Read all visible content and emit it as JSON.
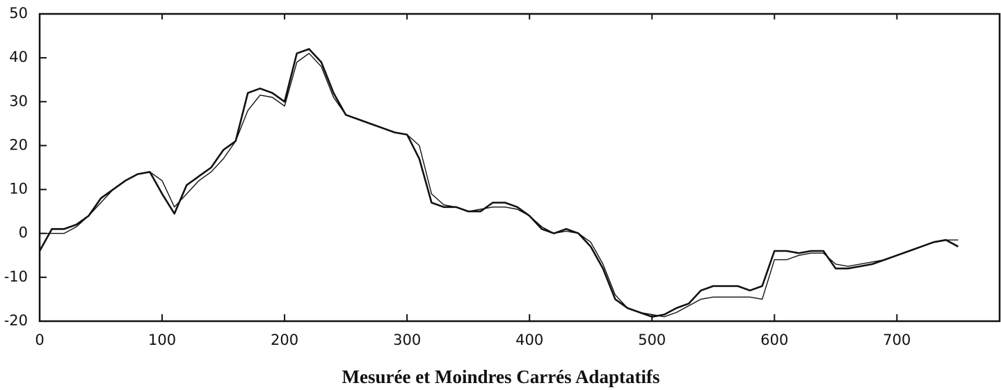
{
  "chart_data": {
    "type": "line",
    "title": "Mesurée et Moindres Carrés Adaptatifs",
    "x": [
      0,
      10,
      20,
      30,
      40,
      50,
      60,
      70,
      80,
      90,
      100,
      110,
      120,
      130,
      140,
      150,
      160,
      170,
      180,
      190,
      200,
      210,
      220,
      230,
      240,
      250,
      260,
      270,
      280,
      290,
      300,
      310,
      320,
      330,
      340,
      350,
      360,
      370,
      380,
      390,
      400,
      410,
      420,
      430,
      440,
      450,
      460,
      470,
      480,
      490,
      500,
      510,
      520,
      530,
      540,
      550,
      560,
      570,
      580,
      590,
      600,
      610,
      620,
      630,
      640,
      650,
      660,
      670,
      680,
      690,
      700,
      710,
      720,
      730,
      740,
      750
    ],
    "series": [
      {
        "color": "#111111",
        "values": [
          -4,
          1,
          1,
          2,
          4,
          8,
          10,
          12,
          13.5,
          14,
          9,
          4.5,
          11,
          13,
          15,
          19,
          21,
          32,
          33,
          32,
          30,
          41,
          42,
          39,
          32,
          27,
          26,
          25,
          24,
          23,
          22.5,
          17,
          7,
          6,
          6,
          5,
          5,
          7,
          7,
          6,
          4,
          1,
          0,
          1,
          0,
          -3,
          -8,
          -15,
          -17,
          -18,
          -19,
          -18.5,
          -17,
          -16,
          -13,
          -12,
          -12,
          -12,
          -13,
          -12,
          -4,
          -4,
          -4.5,
          -4,
          -4,
          -8,
          -8,
          -7.5,
          -7,
          -6,
          -5,
          -4,
          -3,
          -2,
          -1.5,
          -3
        ]
      },
      {
        "color": "#111111",
        "values": [
          0,
          0,
          0,
          1.5,
          4,
          7,
          10,
          12,
          13.5,
          14,
          12,
          6,
          9,
          12,
          14,
          17,
          21,
          28,
          31.5,
          31,
          29,
          39,
          41,
          38,
          31,
          27,
          26,
          25,
          24,
          23,
          22.5,
          20,
          9,
          6.5,
          6,
          5,
          5.5,
          6,
          6,
          5.5,
          4,
          1.5,
          0,
          0.5,
          0,
          -2,
          -7,
          -14,
          -17,
          -18,
          -18.5,
          -19,
          -18,
          -16.5,
          -15,
          -14.5,
          -14.5,
          -14.5,
          -14.5,
          -15,
          -6,
          -6,
          -5,
          -4.5,
          -4.5,
          -7,
          -7.5,
          -7,
          -6.5,
          -6,
          -5,
          -4,
          -3,
          -2,
          -1.5,
          -1.5
        ]
      }
    ],
    "xlim": [
      0,
      785
    ],
    "xticks": [
      0,
      100,
      200,
      300,
      400,
      500,
      600,
      700
    ],
    "ylim": [
      -20,
      50
    ],
    "yticks": [
      -20,
      -10,
      0,
      10,
      20,
      30,
      40,
      50
    ],
    "grid": false
  }
}
